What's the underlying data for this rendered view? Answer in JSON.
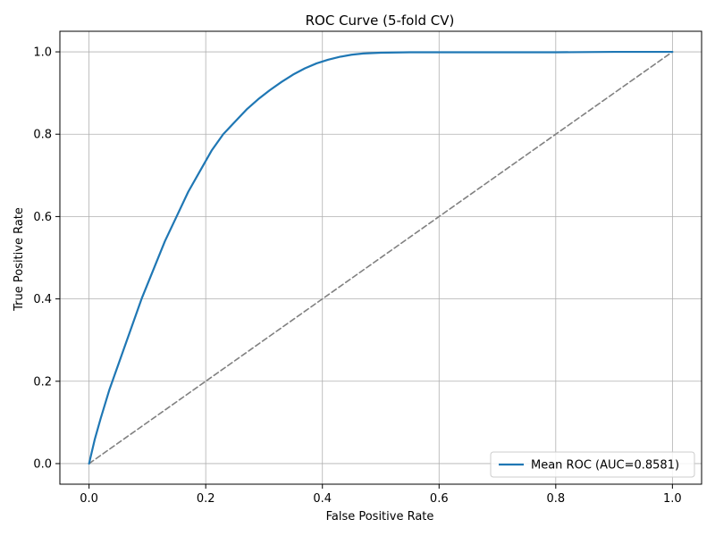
{
  "chart_data": {
    "type": "line",
    "title": "ROC Curve (5-fold CV)",
    "xlabel": "False Positive Rate",
    "ylabel": "True Positive Rate",
    "xlim": [
      -0.05,
      1.05
    ],
    "ylim": [
      -0.05,
      1.05
    ],
    "x_ticks": [
      "0.0",
      "0.2",
      "0.4",
      "0.6",
      "0.8",
      "1.0"
    ],
    "y_ticks": [
      "0.0",
      "0.2",
      "0.4",
      "0.6",
      "0.8",
      "1.0"
    ],
    "grid": true,
    "legend_position": "lower-right",
    "series": [
      {
        "name": "Mean ROC (AUC=0.8581)",
        "color": "#1f77b4",
        "style": "solid",
        "x": [
          0.0,
          0.01,
          0.02,
          0.035,
          0.05,
          0.07,
          0.09,
          0.11,
          0.13,
          0.15,
          0.17,
          0.19,
          0.21,
          0.23,
          0.25,
          0.27,
          0.29,
          0.31,
          0.33,
          0.35,
          0.37,
          0.39,
          0.41,
          0.43,
          0.45,
          0.47,
          0.5,
          0.55,
          0.6,
          0.7,
          0.8,
          0.9,
          1.0
        ],
        "y": [
          0.0,
          0.06,
          0.11,
          0.18,
          0.24,
          0.32,
          0.4,
          0.47,
          0.54,
          0.6,
          0.66,
          0.71,
          0.76,
          0.8,
          0.83,
          0.86,
          0.885,
          0.907,
          0.927,
          0.945,
          0.96,
          0.972,
          0.981,
          0.988,
          0.993,
          0.996,
          0.998,
          0.999,
          0.999,
          0.999,
          0.999,
          1.0,
          1.0
        ]
      },
      {
        "name": "",
        "color": "#808080",
        "style": "dashed",
        "x": [
          0.0,
          1.0
        ],
        "y": [
          0.0,
          1.0
        ]
      }
    ]
  }
}
